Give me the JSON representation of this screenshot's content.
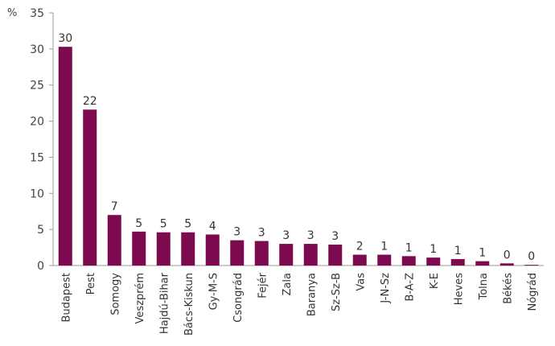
{
  "chart_data": {
    "type": "bar",
    "unit": "%",
    "ylim": [
      0,
      35
    ],
    "yticks": [
      0,
      5,
      10,
      15,
      20,
      25,
      30,
      35
    ],
    "grid": false,
    "bar_color": "#7d0a4f",
    "categories": [
      "Budapest",
      "Pest",
      "Somogy",
      "Veszprém",
      "Hajdú-Bihar",
      "Bács-Kiskun",
      "Gy-M-S",
      "Csongrád",
      "Fejér",
      "Zala",
      "Baranya",
      "Sz-Sz-B",
      "Vas",
      "J-N-Sz",
      "B-A-Z",
      "K-E",
      "Heves",
      "Tolna",
      "Békés",
      "Nógrád"
    ],
    "values": [
      30.3,
      21.6,
      7.0,
      4.7,
      4.6,
      4.6,
      4.3,
      3.5,
      3.4,
      3.0,
      3.0,
      2.9,
      1.5,
      1.5,
      1.3,
      1.1,
      0.9,
      0.6,
      0.3,
      0.1
    ],
    "data_labels": [
      "30",
      "22",
      "7",
      "5",
      "5",
      "5",
      "4",
      "3",
      "3",
      "3",
      "3",
      "3",
      "2",
      "1",
      "1",
      "1",
      "1",
      "1",
      "0",
      "0"
    ]
  }
}
